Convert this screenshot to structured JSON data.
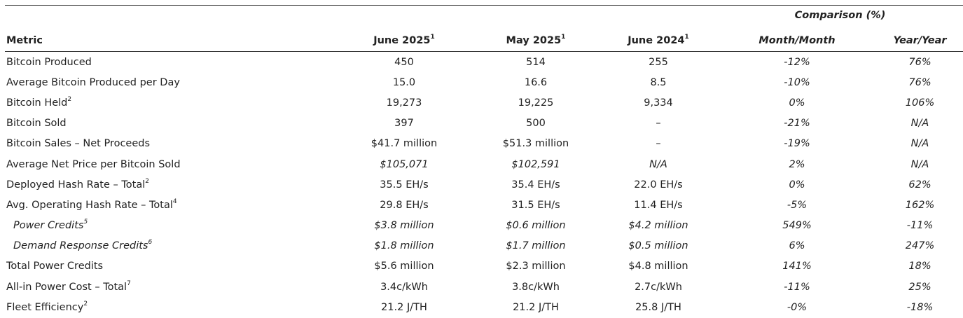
{
  "table": {
    "group_header": "Comparison (%)",
    "columns": [
      {
        "label": "Metric"
      },
      {
        "label": "June 2025",
        "note": "1"
      },
      {
        "label": "May 2025",
        "note": "1"
      },
      {
        "label": "June 2024",
        "note": "1"
      },
      {
        "label": "Month/Month"
      },
      {
        "label": "Year/Year"
      }
    ],
    "rows": [
      {
        "metric": "Bitcoin Produced",
        "values": [
          "450",
          "514",
          "255",
          "-12%",
          "76%"
        ]
      },
      {
        "metric": "Average Bitcoin Produced per Day",
        "values": [
          "15.0",
          "16.6",
          "8.5",
          "-10%",
          "76%"
        ]
      },
      {
        "metric": "Bitcoin Held",
        "note": "2",
        "values": [
          "19,273",
          "19,225",
          "9,334",
          "0%",
          "106%"
        ]
      },
      {
        "metric": "Bitcoin Sold",
        "values": [
          "397",
          "500",
          "–",
          "-21%",
          "N/A"
        ]
      },
      {
        "metric": "Bitcoin Sales – Net Proceeds",
        "values": [
          "$41.7 million",
          "$51.3 million",
          "–",
          "-19%",
          "N/A"
        ]
      },
      {
        "metric": "Average Net Price per Bitcoin Sold",
        "italic": true,
        "values": [
          "$105,071",
          "$102,591",
          "N/A",
          "2%",
          "N/A"
        ]
      },
      {
        "metric": "Deployed Hash Rate – Total",
        "note": "2",
        "values": [
          "35.5 EH/s",
          "35.4 EH/s",
          "22.0 EH/s",
          "0%",
          "62%"
        ]
      },
      {
        "metric": "Avg. Operating Hash Rate – Total",
        "note": "4",
        "values": [
          "29.8 EH/s",
          "31.5 EH/s",
          "11.4 EH/s",
          "-5%",
          "162%"
        ]
      },
      {
        "metric": "Power Credits",
        "note": "5",
        "italic": true,
        "indent": true,
        "values": [
          "$3.8 million",
          "$0.6 million",
          "$4.2 million",
          "549%",
          "-11%"
        ]
      },
      {
        "metric": "Demand Response Credits",
        "note": "6",
        "italic": true,
        "indent": true,
        "values": [
          "$1.8 million",
          "$1.7 million",
          "$0.5 million",
          "6%",
          "247%"
        ]
      },
      {
        "metric": "Total Power Credits",
        "values": [
          "$5.6 million",
          "$2.3 million",
          "$4.8 million",
          "141%",
          "18%"
        ]
      },
      {
        "metric": "All-in Power Cost – Total",
        "note": "7",
        "values": [
          "3.4c/kWh",
          "3.8c/kWh",
          "2.7c/kWh",
          "-11%",
          "25%"
        ]
      },
      {
        "metric": "Fleet Efficiency",
        "note": "2",
        "values": [
          "21.2 J/TH",
          "21.2 J/TH",
          "25.8 J/TH",
          "-0%",
          "-18%"
        ]
      }
    ]
  }
}
